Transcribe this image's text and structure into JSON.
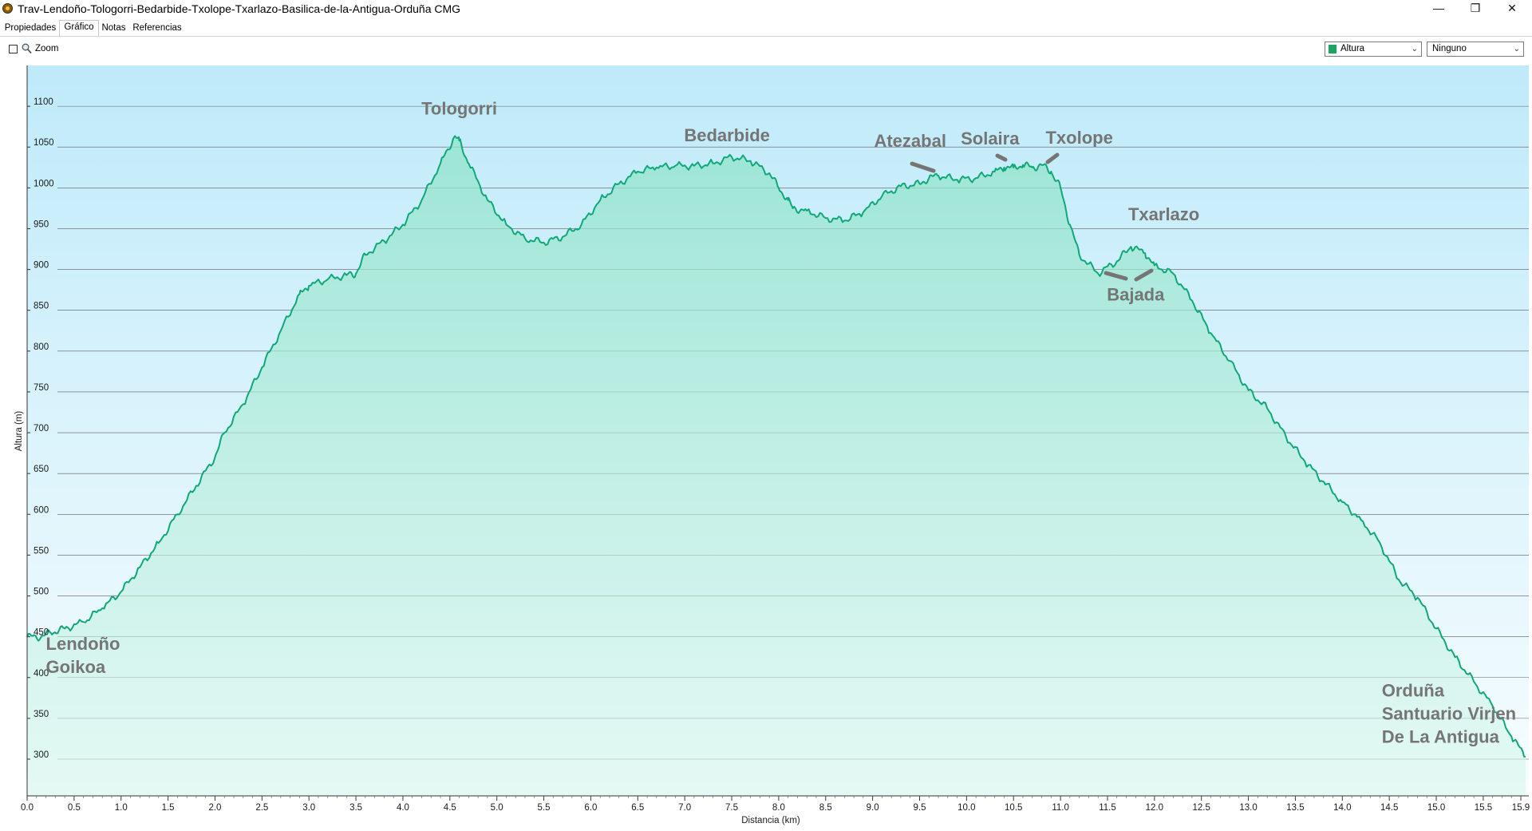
{
  "window": {
    "title": "Trav-Lendoño-Tologorri-Bedarbide-Txolope-Txarlazo-Basilica-de-la-Antigua-Orduña CMG",
    "controls": {
      "minimize": "—",
      "restore": "❐",
      "close": "✕"
    }
  },
  "tabs": [
    {
      "label": "Propiedades",
      "active": false
    },
    {
      "label": "Gráfico",
      "active": true
    },
    {
      "label": "Notas",
      "active": false
    },
    {
      "label": "Referencias",
      "active": false
    }
  ],
  "toolbar": {
    "zoom_label": "Zoom",
    "zoom_checked": false,
    "series_select": "Altura",
    "series_color": "#1aa561",
    "secondary_select": "Ninguno"
  },
  "chart_data": {
    "type": "area",
    "xlabel": "Distancia  (km)",
    "ylabel": "Altura (m)",
    "xlim": [
      0,
      15.95
    ],
    "ylim": [
      255,
      1150
    ],
    "x_ticks": [
      "0.0",
      "0.5",
      "1.0",
      "1.5",
      "2.0",
      "2.5",
      "3.0",
      "3.5",
      "4.0",
      "4.5",
      "5.0",
      "5.5",
      "6.0",
      "6.5",
      "7.0",
      "7.5",
      "8.0",
      "8.5",
      "9.0",
      "9.5",
      "10.0",
      "10.5",
      "11.0",
      "11.5",
      "12.0",
      "12.5",
      "13.0",
      "13.5",
      "14.0",
      "14.5",
      "15.0",
      "15.5",
      "15.9"
    ],
    "y_ticks": [
      "1100",
      "1050",
      "1000",
      "950",
      "900",
      "850",
      "800",
      "750",
      "700",
      "650",
      "600",
      "550",
      "500",
      "450",
      "400",
      "350",
      "300"
    ],
    "grid": true,
    "line_color": "#10a878",
    "series": [
      {
        "x": [
          0.0,
          0.15,
          0.25,
          0.4,
          0.6,
          0.8,
          1.0,
          1.2,
          1.4,
          1.6,
          1.8,
          2.0,
          2.1,
          2.3,
          2.5,
          2.7,
          2.9,
          3.0,
          3.2,
          3.4,
          3.5,
          3.6,
          3.8,
          4.0,
          4.2,
          4.4,
          4.55,
          4.6,
          4.7,
          4.9,
          5.1,
          5.3,
          5.5,
          5.7,
          5.9,
          6.1,
          6.3,
          6.5,
          6.7,
          6.9,
          7.1,
          7.3,
          7.5,
          7.7,
          7.9,
          8.0,
          8.1,
          8.15,
          8.3,
          8.5,
          8.7,
          8.9,
          9.1,
          9.3,
          9.5,
          9.6,
          9.7,
          9.9,
          10.1,
          10.3,
          10.4,
          10.5,
          10.6,
          10.7,
          10.8,
          10.9,
          11.0,
          11.1,
          11.2,
          11.4,
          11.6,
          11.75,
          11.9,
          12.0,
          12.2,
          12.4,
          12.6,
          12.8,
          13.0,
          13.2,
          13.4,
          13.6,
          13.8,
          14.0,
          14.2,
          14.4,
          14.6,
          14.8,
          15.0,
          15.2,
          15.4,
          15.6,
          15.8,
          15.95
        ],
        "y": [
          450,
          450,
          455,
          460,
          468,
          485,
          505,
          535,
          565,
          600,
          635,
          670,
          700,
          735,
          780,
          825,
          870,
          880,
          888,
          893,
          895,
          918,
          935,
          955,
          985,
          1030,
          1063,
          1058,
          1030,
          985,
          955,
          938,
          933,
          940,
          955,
          985,
          1005,
          1020,
          1025,
          1027,
          1027,
          1030,
          1038,
          1033,
          1018,
          1000,
          985,
          975,
          972,
          963,
          960,
          970,
          990,
          1002,
          1005,
          1012,
          1015,
          1010,
          1012,
          1020,
          1025,
          1025,
          1028,
          1025,
          1028,
          1020,
          1000,
          955,
          918,
          895,
          910,
          928,
          920,
          905,
          895,
          862,
          822,
          788,
          752,
          730,
          695,
          665,
          640,
          615,
          593,
          565,
          520,
          498,
          460,
          425,
          395,
          365,
          328,
          303
        ]
      }
    ],
    "annotations": [
      {
        "label": "Tologorri",
        "x": 4.6,
        "y": 1090
      },
      {
        "label": "Bedarbide",
        "x": 7.45,
        "y": 1057
      },
      {
        "label": "Atezabal",
        "x": 9.4,
        "y": 1050
      },
      {
        "label": "Solaira",
        "x": 10.25,
        "y": 1053
      },
      {
        "label": "Txolope",
        "x": 11.2,
        "y": 1054
      },
      {
        "label": "Txarlazo",
        "x": 12.1,
        "y": 960
      },
      {
        "label": "Bajada",
        "x": 11.8,
        "y": 862
      },
      {
        "label": "Lendoño\nGoikoa",
        "x": 0.2,
        "y": 434
      },
      {
        "label": "Orduña\nSantuario Virjen\nDe La Antigua",
        "x": 14.42,
        "y": 377
      }
    ]
  }
}
